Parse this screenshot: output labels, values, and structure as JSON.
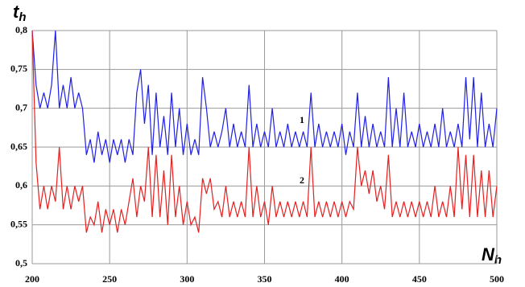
{
  "chart_data": {
    "type": "line",
    "ylabel": "t",
    "ylabel_sub": "h",
    "xlabel": "N",
    "xlabel_sub": "h",
    "x": [
      200,
      202.5,
      205,
      207.5,
      210,
      212.5,
      215,
      217.5,
      220,
      222.5,
      225,
      227.5,
      230,
      232.5,
      235,
      237.5,
      240,
      242.5,
      245,
      247.5,
      250,
      252.5,
      255,
      257.5,
      260,
      262.5,
      265,
      267.5,
      270,
      272.5,
      275,
      277.5,
      280,
      282.5,
      285,
      287.5,
      290,
      292.5,
      295,
      297.5,
      300,
      302.5,
      305,
      307.5,
      310,
      312.5,
      315,
      317.5,
      320,
      322.5,
      325,
      327.5,
      330,
      332.5,
      335,
      337.5,
      340,
      342.5,
      345,
      347.5,
      350,
      352.5,
      355,
      357.5,
      360,
      362.5,
      365,
      367.5,
      370,
      372.5,
      375,
      377.5,
      380,
      382.5,
      385,
      387.5,
      390,
      392.5,
      395,
      397.5,
      400,
      402.5,
      405,
      407.5,
      410,
      412.5,
      415,
      417.5,
      420,
      422.5,
      425,
      427.5,
      430,
      432.5,
      435,
      437.5,
      440,
      442.5,
      445,
      447.5,
      450,
      452.5,
      455,
      457.5,
      460,
      462.5,
      465,
      467.5,
      470,
      472.5,
      475,
      477.5,
      480,
      482.5,
      485,
      487.5,
      490,
      492.5,
      495,
      497.5,
      500
    ],
    "series": [
      {
        "name": "1",
        "color": "#1f1fe6",
        "values": [
          0.8,
          0.73,
          0.7,
          0.72,
          0.7,
          0.73,
          0.8,
          0.7,
          0.73,
          0.7,
          0.74,
          0.7,
          0.72,
          0.7,
          0.64,
          0.66,
          0.63,
          0.67,
          0.64,
          0.66,
          0.63,
          0.66,
          0.64,
          0.66,
          0.63,
          0.66,
          0.64,
          0.72,
          0.75,
          0.68,
          0.73,
          0.64,
          0.72,
          0.65,
          0.69,
          0.64,
          0.72,
          0.65,
          0.7,
          0.64,
          0.68,
          0.64,
          0.66,
          0.64,
          0.74,
          0.7,
          0.65,
          0.67,
          0.65,
          0.67,
          0.7,
          0.65,
          0.68,
          0.65,
          0.67,
          0.65,
          0.73,
          0.65,
          0.68,
          0.65,
          0.67,
          0.65,
          0.7,
          0.65,
          0.67,
          0.65,
          0.68,
          0.65,
          0.67,
          0.65,
          0.67,
          0.65,
          0.72,
          0.65,
          0.68,
          0.65,
          0.67,
          0.65,
          0.67,
          0.65,
          0.68,
          0.64,
          0.67,
          0.65,
          0.72,
          0.65,
          0.69,
          0.65,
          0.68,
          0.65,
          0.67,
          0.65,
          0.74,
          0.65,
          0.7,
          0.65,
          0.72,
          0.65,
          0.67,
          0.65,
          0.68,
          0.65,
          0.67,
          0.65,
          0.68,
          0.65,
          0.7,
          0.65,
          0.67,
          0.65,
          0.68,
          0.65,
          0.74,
          0.66,
          0.74,
          0.65,
          0.72,
          0.65,
          0.68,
          0.65,
          0.7
        ]
      },
      {
        "name": "2",
        "color": "#e61f1f",
        "values": [
          0.8,
          0.63,
          0.57,
          0.6,
          0.57,
          0.6,
          0.58,
          0.65,
          0.57,
          0.6,
          0.57,
          0.6,
          0.58,
          0.6,
          0.54,
          0.56,
          0.55,
          0.58,
          0.54,
          0.57,
          0.55,
          0.57,
          0.54,
          0.57,
          0.55,
          0.58,
          0.61,
          0.56,
          0.6,
          0.58,
          0.65,
          0.56,
          0.64,
          0.56,
          0.62,
          0.55,
          0.64,
          0.56,
          0.6,
          0.55,
          0.58,
          0.55,
          0.56,
          0.54,
          0.61,
          0.59,
          0.61,
          0.57,
          0.58,
          0.56,
          0.6,
          0.56,
          0.58,
          0.56,
          0.58,
          0.56,
          0.65,
          0.56,
          0.6,
          0.56,
          0.58,
          0.55,
          0.6,
          0.56,
          0.58,
          0.56,
          0.58,
          0.56,
          0.58,
          0.56,
          0.58,
          0.56,
          0.65,
          0.56,
          0.58,
          0.56,
          0.58,
          0.56,
          0.58,
          0.56,
          0.58,
          0.56,
          0.58,
          0.57,
          0.65,
          0.6,
          0.62,
          0.59,
          0.62,
          0.58,
          0.6,
          0.57,
          0.64,
          0.56,
          0.58,
          0.56,
          0.58,
          0.56,
          0.58,
          0.56,
          0.58,
          0.56,
          0.58,
          0.56,
          0.6,
          0.56,
          0.58,
          0.56,
          0.6,
          0.56,
          0.65,
          0.57,
          0.64,
          0.56,
          0.64,
          0.56,
          0.62,
          0.56,
          0.62,
          0.56,
          0.6
        ]
      }
    ],
    "xlim": [
      200,
      500
    ],
    "ylim": [
      0.5,
      0.8
    ],
    "xticks": [
      200,
      250,
      300,
      350,
      400,
      450,
      500
    ],
    "yticks": [
      {
        "value": 0.5,
        "label": "0,5"
      },
      {
        "value": 0.55,
        "label": "0,55"
      },
      {
        "value": 0.6,
        "label": "0,6"
      },
      {
        "value": 0.65,
        "label": "0,65"
      },
      {
        "value": 0.7,
        "label": "0,7"
      },
      {
        "value": 0.75,
        "label": "0,75"
      },
      {
        "value": 0.8,
        "label": "0,8"
      }
    ],
    "grid": true
  }
}
